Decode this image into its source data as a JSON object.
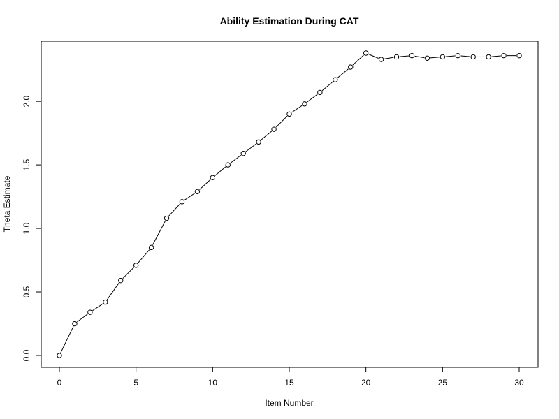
{
  "chart_data": {
    "type": "line",
    "title": "Ability Estimation During CAT",
    "xlabel": "Item Number",
    "ylabel": "Theta Estimate",
    "xlim": [
      0,
      30
    ],
    "ylim": [
      0,
      2.38
    ],
    "grid": false,
    "x": [
      0,
      1,
      2,
      3,
      4,
      5,
      6,
      7,
      8,
      9,
      10,
      11,
      12,
      13,
      14,
      15,
      16,
      17,
      18,
      19,
      20,
      21,
      22,
      23,
      24,
      25,
      26,
      27,
      28,
      29,
      30
    ],
    "series": [
      {
        "values": [
          0.0,
          0.25,
          0.34,
          0.42,
          0.59,
          0.71,
          0.85,
          1.08,
          1.21,
          1.29,
          1.4,
          1.5,
          1.59,
          1.68,
          1.78,
          1.9,
          1.98,
          2.07,
          2.17,
          2.27,
          2.38,
          2.33,
          2.35,
          2.36,
          2.34,
          2.35,
          2.36,
          2.35,
          2.35,
          2.36,
          2.36
        ]
      }
    ],
    "x_ticks": [
      "0",
      "5",
      "10",
      "15",
      "20",
      "25",
      "30"
    ],
    "y_ticks": [
      "0.0",
      "0.5",
      "1.0",
      "1.5",
      "2.0"
    ]
  }
}
